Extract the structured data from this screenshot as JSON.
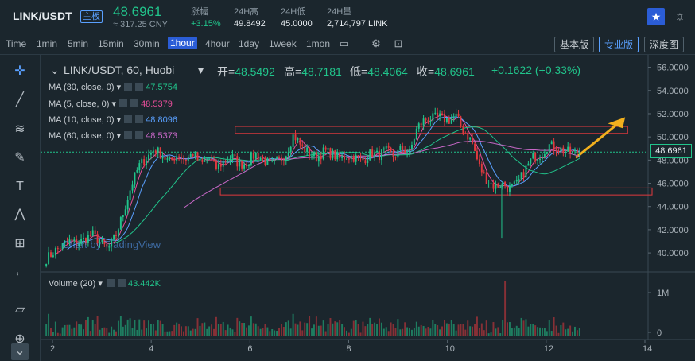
{
  "header": {
    "pair": "LINK/USDT",
    "board": "主板",
    "price": "48.6961",
    "price_cny": "≈ 317.25 CNY",
    "change_label": "涨幅",
    "change_value": "+3.15%",
    "high_label": "24H高",
    "high_value": "49.8492",
    "low_label": "24H低",
    "low_value": "45.0000",
    "volume_label": "24H量",
    "volume_value": "2,714,797 LINK"
  },
  "toolbar": {
    "timeframes": [
      "Time",
      "1min",
      "5min",
      "15min",
      "30min",
      "1hour",
      "4hour",
      "1day",
      "1week",
      "1mon"
    ],
    "active_timeframe": "1hour",
    "views": [
      "基本版",
      "专业版",
      "深度图"
    ],
    "active_view": "专业版"
  },
  "left_tools": [
    "crosshair-icon",
    "trendline-icon",
    "fib-icon",
    "brush-icon",
    "text-icon",
    "pattern-icon",
    "measure-icon",
    "arrow-left-icon",
    "ruler-icon",
    "zoom-icon"
  ],
  "chart_legend": {
    "title": "LINK/USDT, 60, Huobi",
    "open_label": "开=",
    "open": "48.5492",
    "high_label": "高=",
    "high": "48.7181",
    "low_label": "低=",
    "low": "48.4064",
    "close_label": "收=",
    "close": "48.6961",
    "change": "+0.1622 (+0.33%)"
  },
  "indicators": [
    {
      "label": "MA (30, close, 0)",
      "value": "47.5754",
      "color": "#21c48b"
    },
    {
      "label": "MA (5, close, 0)",
      "value": "48.5379",
      "color": "#e84e9a"
    },
    {
      "label": "MA (10, close, 0)",
      "value": "48.8096",
      "color": "#5aa0ff"
    },
    {
      "label": "MA (60, close, 0)",
      "value": "48.5373",
      "color": "#c868c8"
    }
  ],
  "watermark": "Chart by TradingView",
  "last_price_label": "48.6961",
  "volume": {
    "label": "Volume (20)",
    "value": "43.442K"
  },
  "chart_data": {
    "type": "candlestick",
    "x_ticks": [
      "2",
      "4",
      "6",
      "8",
      "10",
      "12",
      "14"
    ],
    "y_ticks": [
      "56.0000",
      "54.0000",
      "52.0000",
      "50.0000",
      "48.0000",
      "46.0000",
      "44.0000",
      "42.0000",
      "40.0000"
    ],
    "volume_ticks": [
      "1M",
      "0"
    ],
    "ylim": [
      38.5,
      57
    ],
    "close_path": [
      39.5,
      40.1,
      40.6,
      41.0,
      40.8,
      41.2,
      41.6,
      40.9,
      40.3,
      41.5,
      43.5,
      45.8,
      47.5,
      48.2,
      49.0,
      48.4,
      47.8,
      48.5,
      48.0,
      48.6,
      47.6,
      48.2,
      47.3,
      47.9,
      48.3,
      47.6,
      47.8,
      48.5,
      48.1,
      47.6,
      47.9,
      48.5,
      50.2,
      49.2,
      48.6,
      48.2,
      48.8,
      48.5,
      48.1,
      48.4,
      48.2,
      48.0,
      48.6,
      48.4,
      48.8,
      48.3,
      49.0,
      48.6,
      50.8,
      51.5,
      51.6,
      51.7,
      51.4,
      51.8,
      50.5,
      49.7,
      47.5,
      46.3,
      45.7,
      46.0,
      45.5,
      46.0,
      47.2,
      48.3,
      48.5,
      49.3,
      49.1,
      48.8,
      48.6,
      48.7
    ],
    "x_range": [
      1.85,
      12.7
    ],
    "resistance_zone": [
      50.3,
      50.9
    ],
    "support_zone": [
      45.0,
      45.6
    ],
    "volume_spike_x": 11.15
  }
}
